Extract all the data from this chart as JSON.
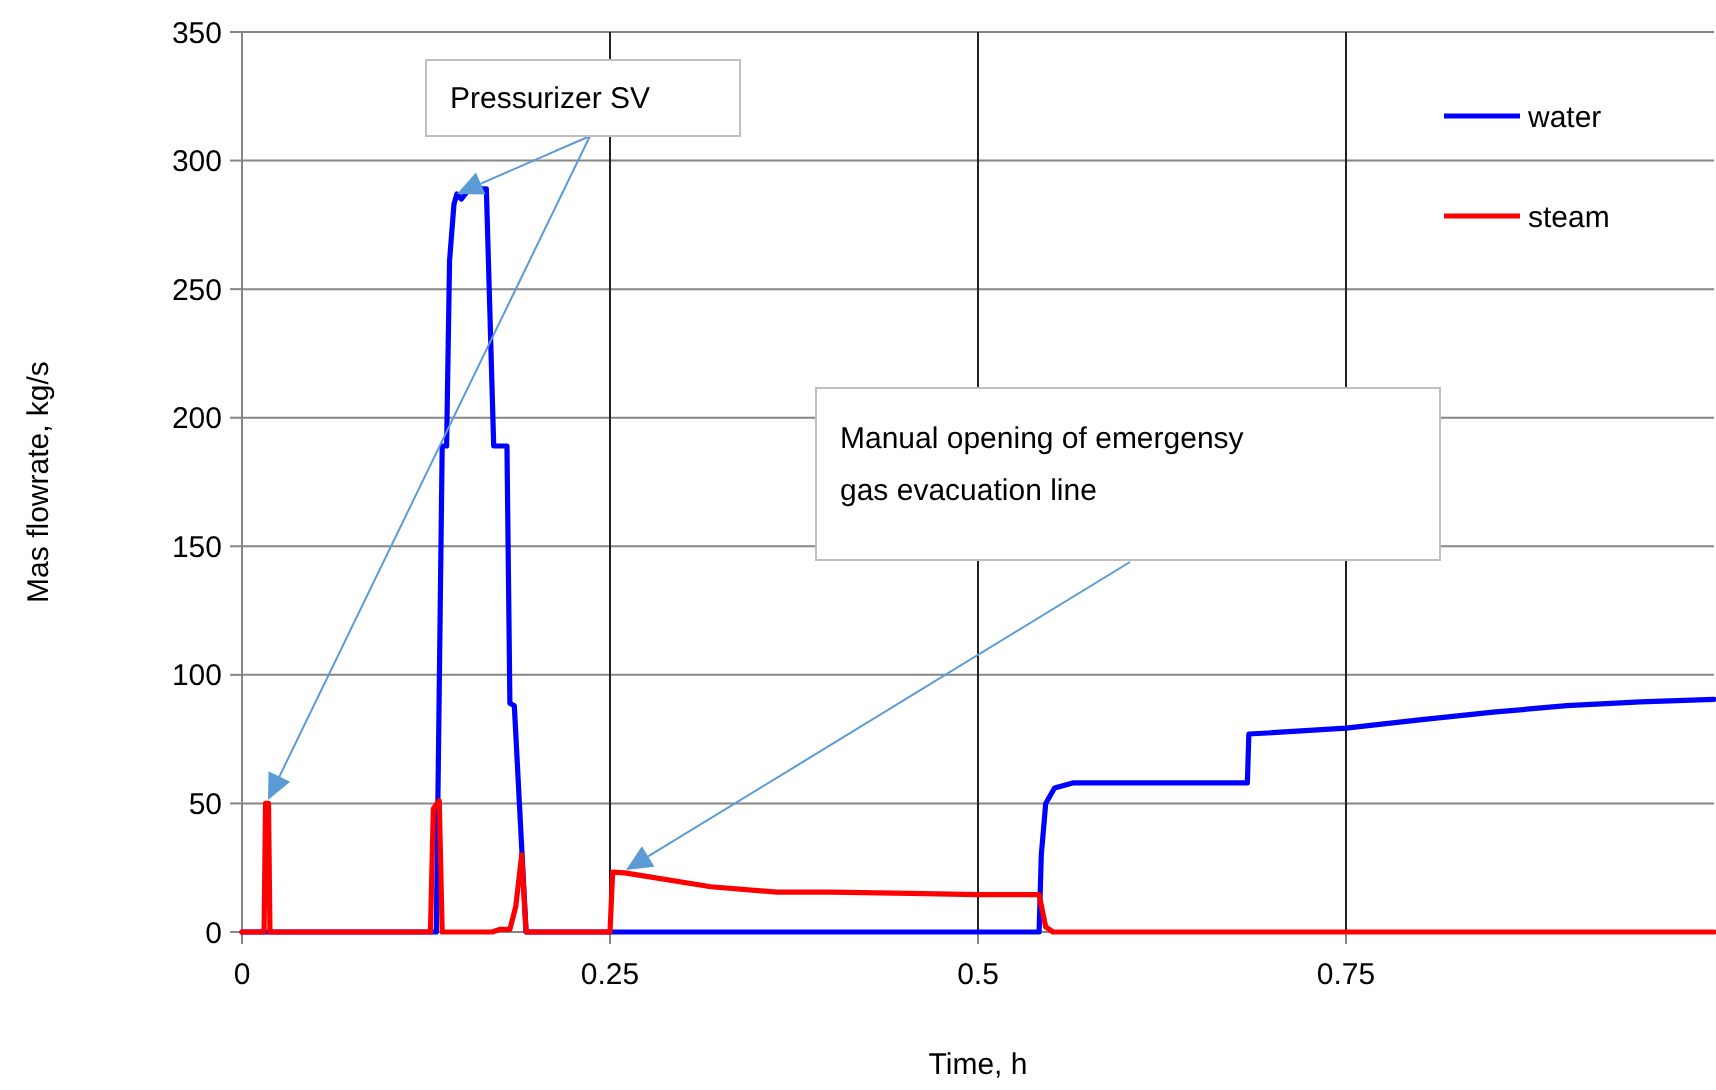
{
  "chart_data": {
    "type": "line",
    "xlabel": "Time, h",
    "ylabel": "Mas flowrate, kg/s",
    "xlim": [
      0,
      1
    ],
    "ylim": [
      0,
      350
    ],
    "xticks": [
      0,
      0.25,
      0.5,
      0.75
    ],
    "yticks": [
      0,
      50,
      100,
      150,
      200,
      250,
      300,
      350
    ],
    "grid": true,
    "legend": "top right",
    "marker": "none",
    "line_style": "solid",
    "series": [
      {
        "name": "water",
        "color": "#0000ff",
        "x": [
          0,
          0.132,
          0.136,
          0.139,
          0.141,
          0.144,
          0.146,
          0.149,
          0.153,
          0.16,
          0.166,
          0.171,
          0.18,
          0.182,
          0.185,
          0.193,
          0.25,
          0.5,
          0.5415,
          0.543,
          0.546,
          0.552,
          0.565,
          0.6,
          0.683,
          0.684,
          0.7,
          0.75,
          0.8,
          0.85,
          0.9,
          0.95,
          1
        ],
        "values": [
          0,
          0,
          189,
          189,
          261,
          283,
          287,
          285,
          288,
          289,
          289,
          189,
          189,
          89,
          88,
          0,
          0,
          0,
          0,
          30,
          50,
          56,
          58,
          58,
          58,
          77,
          77.5,
          79.3,
          82.5,
          85.5,
          88,
          89.5,
          90.5
        ]
      },
      {
        "name": "steam",
        "color": "#ff0000",
        "x": [
          0,
          0.015,
          0.016,
          0.018,
          0.019,
          0.128,
          0.13,
          0.134,
          0.136,
          0.17,
          0.175,
          0.182,
          0.186,
          0.19,
          0.193,
          0.25,
          0.2518,
          0.26,
          0.3185,
          0.3635,
          0.4,
          0.4536,
          0.5,
          0.5415,
          0.546,
          0.551,
          0.75,
          1
        ],
        "values": [
          0,
          0,
          50,
          50,
          0,
          0,
          48,
          51,
          0,
          0,
          1,
          1,
          10,
          30,
          0,
          0,
          23.3,
          23,
          17.6,
          15.5,
          15.5,
          15,
          14.5,
          14.5,
          2,
          0,
          0,
          0
        ]
      }
    ],
    "annotations": [
      {
        "text": "Pressurizer SV",
        "x": 0.146,
        "y": 287
      },
      "Manual opening of emergensy gas evacuation line"
    ]
  }
}
